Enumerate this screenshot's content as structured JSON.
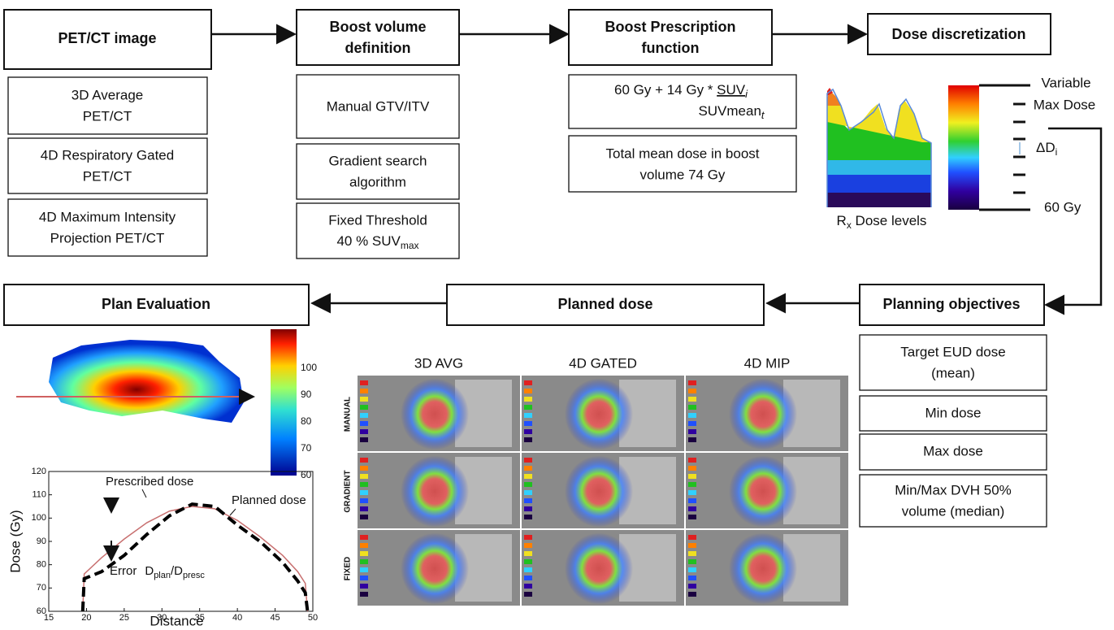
{
  "pipeline": {
    "pet": {
      "title": "PET/CT image",
      "items": [
        [
          "3D Average",
          "PET/CT"
        ],
        [
          "4D Respiratory Gated",
          "PET/CT"
        ],
        [
          "4D Maximum Intensity",
          "Projection PET/CT"
        ]
      ]
    },
    "boost": {
      "title": [
        "Boost volume",
        "definition"
      ],
      "items": [
        [
          "Manual GTV/ITV"
        ],
        [
          "Gradient search",
          "algorithm"
        ]
      ],
      "threshold": {
        "line1": "Fixed Threshold",
        "line2": "40 % SUV",
        "sub": "max"
      }
    },
    "prescription": {
      "title": [
        "Boost Prescription",
        "function"
      ],
      "formula": {
        "prefix": "60 Gy + 14 Gy * ",
        "num": "SUV",
        "num_sub": "i",
        "den": "SUVmean",
        "den_sub": "t"
      },
      "items": [
        [
          "Total mean dose in boost",
          "volume 74 Gy"
        ]
      ]
    },
    "discretization": {
      "title": "Dose discretization",
      "levels_label": {
        "main": "R",
        "sub": "x",
        "rest": " Dose levels"
      },
      "variable": "Variable",
      "max_dose": "Max Dose",
      "delta": {
        "main": "ΔD",
        "sub": "i"
      },
      "min_dose": "60 Gy"
    },
    "objectives": {
      "title": "Planning objectives",
      "items": [
        [
          "Target EUD dose",
          "(mean)"
        ],
        [
          "Min dose"
        ],
        [
          "Max dose"
        ],
        [
          "Min/Max DVH 50%",
          "volume (median)"
        ]
      ]
    },
    "planned": {
      "title": "Planned dose",
      "columns": [
        "3D AVG",
        "4D GATED",
        "4D MIP"
      ],
      "rows": [
        "MANUAL",
        "GRADIENT",
        "FIXED"
      ]
    },
    "evaluation": {
      "title": "Plan Evaluation",
      "colorbar_ticks": [
        100,
        90,
        80,
        70,
        60
      ]
    }
  },
  "chart_data": {
    "type": "line",
    "ylabel": "Dose (Gy)",
    "xlabel": "Distance",
    "xlim": [
      15,
      50
    ],
    "ylim": [
      60,
      120
    ],
    "xticks": [
      15,
      20,
      25,
      30,
      35,
      40,
      45,
      50
    ],
    "yticks": [
      60,
      70,
      80,
      90,
      100,
      110,
      120
    ],
    "x": [
      19.5,
      19.7,
      22,
      25,
      28,
      31,
      34,
      37,
      40,
      43,
      46,
      48,
      49,
      49.3
    ],
    "series": [
      {
        "name": "Prescribed dose",
        "color": "#c87070",
        "values": [
          60,
          76,
          83,
          91,
          98,
          103,
          105,
          104,
          99,
          92,
          84,
          77,
          72,
          60
        ]
      },
      {
        "name": "Planned dose",
        "color": "#000000",
        "values": [
          60,
          74,
          77,
          84,
          93,
          101,
          106,
          105,
          97,
          90,
          81,
          73,
          68,
          60
        ]
      }
    ],
    "annotation": {
      "error": "Error",
      "d": "D",
      "plan": "plan",
      "slash": "/D",
      "presc": "presc"
    }
  }
}
